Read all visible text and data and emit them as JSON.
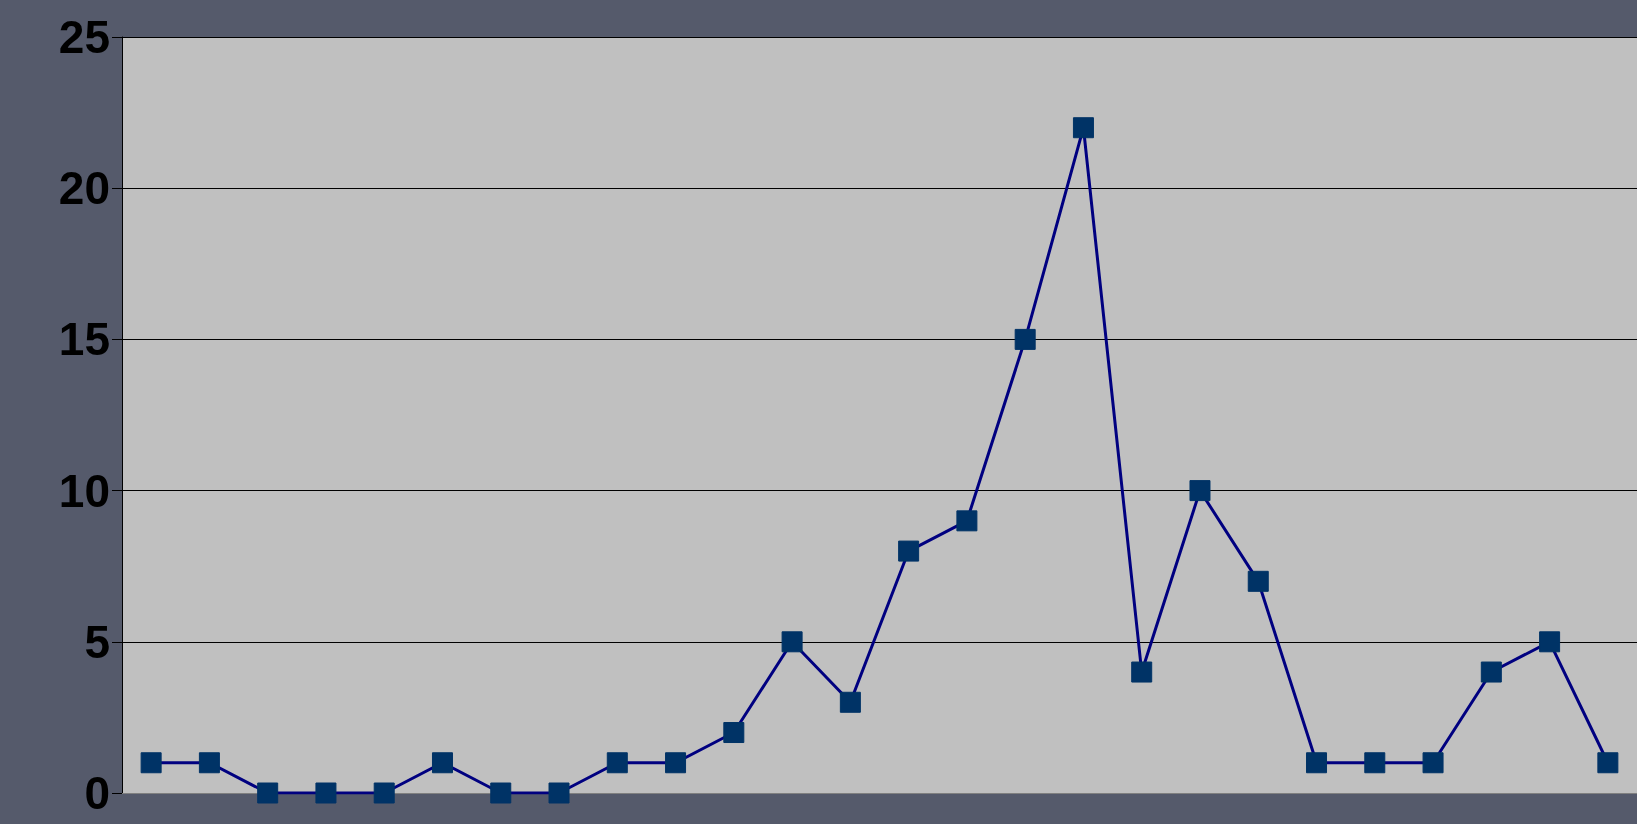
{
  "chart_data": {
    "type": "line",
    "categories": [
      null,
      null,
      null,
      null,
      null,
      null,
      null,
      null,
      null,
      null,
      null,
      null,
      null,
      null,
      null,
      null,
      null,
      null,
      null,
      null,
      null,
      null,
      null,
      null,
      null,
      null
    ],
    "series": [
      {
        "color": "#000080",
        "values": [
          1,
          1,
          0,
          0,
          0,
          1,
          0,
          0,
          1,
          1,
          2,
          5,
          3,
          8,
          9,
          15,
          22,
          4,
          10,
          7,
          1,
          1,
          1,
          4,
          5,
          1
        ]
      }
    ],
    "ylim": [
      0,
      25
    ],
    "yticks": [
      0,
      5,
      10,
      15,
      20,
      25
    ],
    "grid": "y",
    "marker": "square",
    "line_style": "solid",
    "tick_labels": "y"
  }
}
